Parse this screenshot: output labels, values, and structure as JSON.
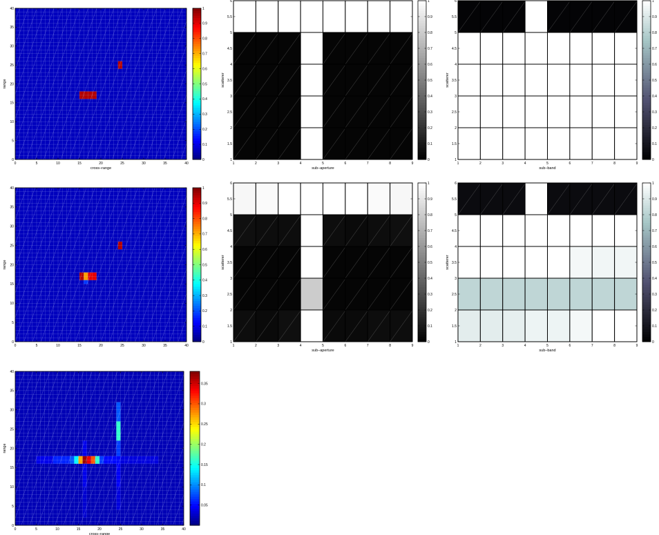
{
  "figure": {
    "background": "#ffffff",
    "colormaps": {
      "jet": "jet",
      "gray": "gray",
      "bone": "bone"
    }
  },
  "chart_data": [
    {
      "id": "sar-image-1",
      "type": "heatmap",
      "colormap": "jet",
      "xlabel": "cross–range",
      "ylabel": "range",
      "xlim": [
        0,
        40
      ],
      "ylim": [
        0,
        40
      ],
      "xticks": [
        0,
        5,
        10,
        15,
        20,
        25,
        30,
        35,
        40
      ],
      "yticks": [
        0,
        5,
        10,
        15,
        20,
        25,
        30,
        35,
        40
      ],
      "clim": [
        0,
        1
      ],
      "colorbar_ticks": [
        0,
        0.1,
        0.2,
        0.3,
        0.4,
        0.5,
        0.6,
        0.7,
        0.8,
        0.9,
        1
      ],
      "grid": true,
      "background_value": 0.06,
      "cells": [
        {
          "x": 15,
          "y": 16,
          "w": 4,
          "h": 2,
          "value": 0.95
        },
        {
          "x": 24,
          "y": 24,
          "w": 1,
          "h": 2,
          "value": 0.95
        }
      ]
    },
    {
      "id": "sub-aperture-1",
      "type": "heatmap",
      "colormap": "gray",
      "xlabel": "sub–aperture",
      "ylabel": "scatterer",
      "xlim": [
        1,
        9
      ],
      "ylim": [
        1,
        6
      ],
      "xticks": [
        1,
        2,
        3,
        4,
        5,
        6,
        7,
        8,
        9
      ],
      "yticks": [
        1,
        1.5,
        2,
        2.5,
        3,
        3.5,
        4,
        4.5,
        5,
        5.5,
        6
      ],
      "clim": [
        0,
        1
      ],
      "colorbar_ticks": [
        0,
        0.1,
        0.2,
        0.3,
        0.4,
        0.5,
        0.6,
        0.7,
        0.8,
        0.9,
        1
      ],
      "rows_top_to_bottom": [
        [
          1,
          1,
          1,
          1,
          1,
          1,
          1,
          1
        ],
        [
          0.02,
          0.02,
          0.02,
          1,
          0.02,
          0.02,
          0.02,
          0.02
        ],
        [
          0.02,
          0.02,
          0.02,
          1,
          0.02,
          0.02,
          0.02,
          0.02
        ],
        [
          0.02,
          0.02,
          0.02,
          1,
          0.02,
          0.02,
          0.02,
          0.02
        ],
        [
          0.02,
          0.02,
          0.02,
          1,
          0.02,
          0.02,
          0.02,
          0.02
        ]
      ]
    },
    {
      "id": "sub-band-1",
      "type": "heatmap",
      "colormap": "bone",
      "xlabel": "sub–band",
      "ylabel": "scatterer",
      "xlim": [
        1,
        9
      ],
      "ylim": [
        1,
        6
      ],
      "xticks": [
        1,
        2,
        3,
        4,
        5,
        6,
        7,
        8,
        9
      ],
      "yticks": [
        1,
        1.5,
        2,
        2.5,
        3,
        3.5,
        4,
        4.5,
        5,
        5.5,
        6
      ],
      "clim": [
        0,
        1
      ],
      "colorbar_ticks": [
        0,
        0.1,
        0.2,
        0.3,
        0.4,
        0.5,
        0.6,
        0.7,
        0.8,
        0.9,
        1
      ],
      "rows_top_to_bottom": [
        [
          0.02,
          0.02,
          0.02,
          1,
          0.02,
          0.02,
          0.02,
          0.02
        ],
        [
          1,
          1,
          1,
          1,
          1,
          1,
          1,
          1
        ],
        [
          1,
          1,
          1,
          1,
          1,
          1,
          1,
          1
        ],
        [
          1,
          1,
          1,
          1,
          1,
          1,
          1,
          1
        ],
        [
          1,
          1,
          1,
          1,
          1,
          1,
          1,
          1
        ]
      ]
    },
    {
      "id": "sar-image-2",
      "type": "heatmap",
      "colormap": "jet",
      "xlabel": "",
      "ylabel": "range",
      "xlim": [
        0,
        40
      ],
      "ylim": [
        0,
        40
      ],
      "xticks": [
        0,
        5,
        10,
        15,
        20,
        25,
        30,
        35,
        40
      ],
      "yticks": [
        0,
        5,
        10,
        15,
        20,
        25,
        30,
        35,
        40
      ],
      "clim": [
        0,
        1
      ],
      "colorbar_ticks": [
        0,
        0.1,
        0.2,
        0.3,
        0.4,
        0.5,
        0.6,
        0.7,
        0.8,
        0.9,
        1
      ],
      "grid": true,
      "background_value": 0.06,
      "cells": [
        {
          "x": 15,
          "y": 16,
          "w": 1,
          "h": 2,
          "value": 0.95
        },
        {
          "x": 16,
          "y": 16,
          "w": 1,
          "h": 2,
          "value": 0.72
        },
        {
          "x": 17,
          "y": 16,
          "w": 2,
          "h": 2,
          "value": 0.9
        },
        {
          "x": 16,
          "y": 15,
          "w": 1,
          "h": 1,
          "value": 0.18
        },
        {
          "x": 24,
          "y": 24,
          "w": 1,
          "h": 2,
          "value": 0.95
        }
      ]
    },
    {
      "id": "sub-aperture-2",
      "type": "heatmap",
      "colormap": "gray",
      "xlabel": "sub–aperture",
      "ylabel": "scatterer",
      "xlim": [
        1,
        9
      ],
      "ylim": [
        1,
        6
      ],
      "xticks": [
        1,
        2,
        3,
        4,
        5,
        6,
        7,
        8,
        9
      ],
      "yticks": [
        1,
        1.5,
        2,
        2.5,
        3,
        3.5,
        4,
        4.5,
        5,
        5.5,
        6
      ],
      "clim": [
        0,
        1
      ],
      "colorbar_ticks": [
        0,
        0.1,
        0.2,
        0.3,
        0.4,
        0.5,
        0.6,
        0.7,
        0.8,
        0.9,
        1
      ],
      "rows_top_to_bottom": [
        [
          0.97,
          0.98,
          1,
          1,
          1,
          1,
          0.98,
          0.97
        ],
        [
          0.06,
          0.05,
          0.05,
          1,
          0.05,
          0.04,
          0.05,
          0.06
        ],
        [
          0.02,
          0.02,
          0.02,
          1,
          0.02,
          0.02,
          0.02,
          0.02
        ],
        [
          0.02,
          0.02,
          0.02,
          0.8,
          0.02,
          0.02,
          0.02,
          0.02
        ],
        [
          0.05,
          0.04,
          0.06,
          1,
          0.04,
          0.04,
          0.05,
          0.05
        ]
      ]
    },
    {
      "id": "sub-band-2",
      "type": "heatmap",
      "colormap": "bone",
      "xlabel": "sub–band",
      "ylabel": "scatterer",
      "xlim": [
        1,
        9
      ],
      "ylim": [
        1,
        6
      ],
      "xticks": [
        1,
        2,
        3,
        4,
        5,
        6,
        7,
        8,
        9
      ],
      "yticks": [
        1,
        1.5,
        2,
        2.5,
        3,
        3.5,
        4,
        4.5,
        5,
        5.5,
        6
      ],
      "clim": [
        0,
        1
      ],
      "colorbar_ticks": [
        0,
        0.1,
        0.2,
        0.3,
        0.4,
        0.5,
        0.6,
        0.7,
        0.8,
        0.9,
        1
      ],
      "rows_top_to_bottom": [
        [
          0.05,
          0.05,
          0.05,
          1,
          0.05,
          0.05,
          0.05,
          0.05
        ],
        [
          1,
          1,
          1,
          1,
          1,
          1,
          1,
          1
        ],
        [
          1,
          1,
          1,
          1,
          1,
          0.97,
          0.96,
          0.96
        ],
        [
          0.82,
          0.82,
          0.82,
          0.82,
          0.82,
          0.82,
          0.82,
          0.82
        ],
        [
          0.92,
          0.92,
          0.93,
          0.95,
          0.95,
          0.97,
          1,
          1
        ]
      ]
    },
    {
      "id": "sar-image-3",
      "type": "heatmap",
      "colormap": "jet",
      "xlabel": "cross–range",
      "ylabel": "range",
      "xlim": [
        0,
        40
      ],
      "ylim": [
        0,
        40
      ],
      "xticks": [
        0,
        5,
        10,
        15,
        20,
        25,
        30,
        35,
        40
      ],
      "yticks": [
        0,
        5,
        10,
        15,
        20,
        25,
        30,
        35,
        40
      ],
      "clim": [
        0,
        0.38
      ],
      "colorbar_ticks": [
        0.05,
        0.1,
        0.15,
        0.2,
        0.25,
        0.3,
        0.35
      ],
      "grid": true,
      "background_value": 0.02,
      "cells": [
        {
          "x": 5,
          "y": 16,
          "w": 4,
          "h": 2,
          "value": 0.04
        },
        {
          "x": 9,
          "y": 16,
          "w": 4,
          "h": 2,
          "value": 0.06
        },
        {
          "x": 13,
          "y": 16,
          "w": 1,
          "h": 2,
          "value": 0.08
        },
        {
          "x": 14,
          "y": 16,
          "w": 1,
          "h": 2,
          "value": 0.14
        },
        {
          "x": 15,
          "y": 16,
          "w": 1,
          "h": 2,
          "value": 0.27
        },
        {
          "x": 16,
          "y": 16,
          "w": 1,
          "h": 2,
          "value": 0.37
        },
        {
          "x": 17,
          "y": 16,
          "w": 1,
          "h": 2,
          "value": 0.34
        },
        {
          "x": 18,
          "y": 16,
          "w": 1,
          "h": 2,
          "value": 0.3
        },
        {
          "x": 19,
          "y": 16,
          "w": 1,
          "h": 2,
          "value": 0.16
        },
        {
          "x": 20,
          "y": 16,
          "w": 1,
          "h": 2,
          "value": 0.07
        },
        {
          "x": 21,
          "y": 16,
          "w": 4,
          "h": 2,
          "value": 0.05
        },
        {
          "x": 25,
          "y": 16,
          "w": 9,
          "h": 2,
          "value": 0.035
        },
        {
          "x": 24,
          "y": 27,
          "w": 1,
          "h": 5,
          "value": 0.08
        },
        {
          "x": 24,
          "y": 22,
          "w": 1,
          "h": 5,
          "value": 0.16
        },
        {
          "x": 24,
          "y": 18,
          "w": 1,
          "h": 4,
          "value": 0.07
        },
        {
          "x": 24,
          "y": 10,
          "w": 1,
          "h": 6,
          "value": 0.045
        },
        {
          "x": 24,
          "y": 4,
          "w": 1,
          "h": 6,
          "value": 0.035
        },
        {
          "x": 16,
          "y": 18,
          "w": 1,
          "h": 4,
          "value": 0.04
        },
        {
          "x": 16,
          "y": 10,
          "w": 1,
          "h": 6,
          "value": 0.04
        },
        {
          "x": 16,
          "y": 2,
          "w": 1,
          "h": 8,
          "value": 0.03
        }
      ]
    }
  ]
}
